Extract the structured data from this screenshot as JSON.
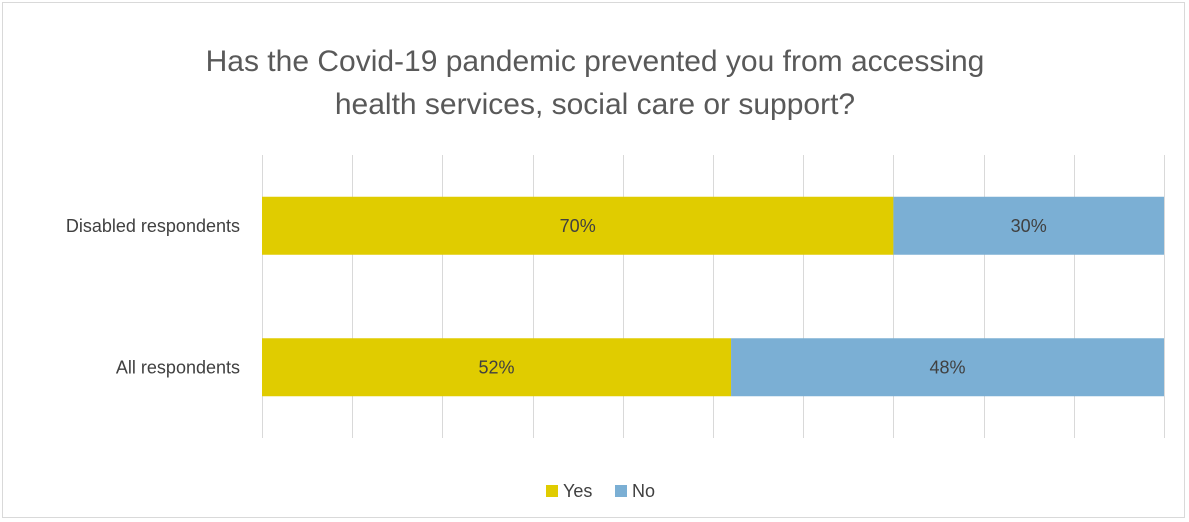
{
  "chart_data": {
    "type": "bar",
    "orientation": "horizontal",
    "stacked": true,
    "title_lines": [
      "Has the Covid-19 pandemic prevented you from accessing",
      "health services, social care or support?"
    ],
    "categories": [
      "Disabled respondents",
      "All respondents"
    ],
    "series": [
      {
        "name": "Yes",
        "color": "#e0cc00",
        "values": [
          70,
          52
        ],
        "labels": [
          "70%",
          "52%"
        ]
      },
      {
        "name": "No",
        "color": "#7bafd4",
        "values": [
          30,
          48
        ],
        "labels": [
          "30%",
          "48%"
        ]
      }
    ],
    "xlim": [
      0,
      100
    ],
    "grid": true,
    "legend_position": "bottom"
  }
}
